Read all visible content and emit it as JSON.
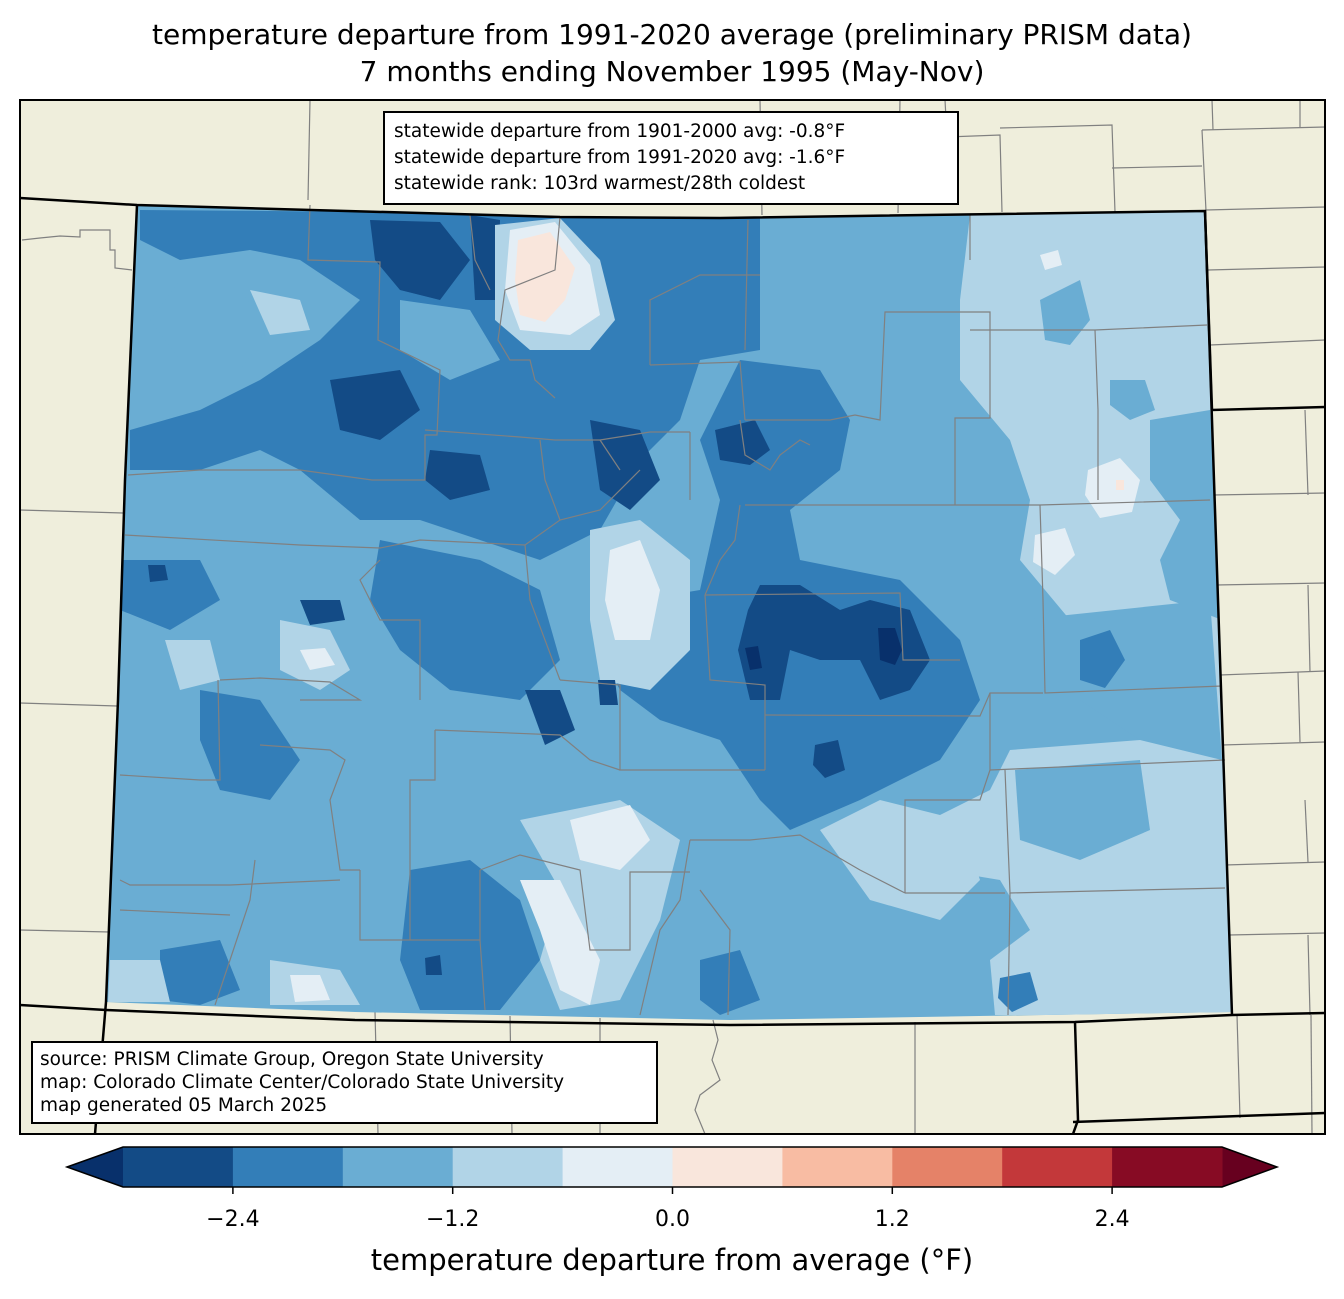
{
  "title": {
    "line1": "temperature departure from 1991-2020 average (preliminary PRISM data)",
    "line2": "7 months ending November 1995 (May-Nov)"
  },
  "stats": {
    "lines": [
      "statewide departure from 1901-2000 avg: -0.8°F",
      "statewide departure from 1991-2020 avg: -1.6°F",
      "statewide rank: 103rd warmest/28th coldest"
    ],
    "departure_1901_2000": -0.8,
    "departure_1991_2020": -1.6,
    "rank_warmest": 103,
    "rank_coldest": 28,
    "units": "°F"
  },
  "source": {
    "lines": [
      "source: PRISM Climate Group, Oregon State University",
      "map: Colorado Climate Center/Colorado State University",
      "map generated 05 March 2025"
    ]
  },
  "colorbar": {
    "label": "temperature departure from average (°F)",
    "ticks": [
      "−2.4",
      "−1.2",
      "0.0",
      "1.2",
      "2.4"
    ],
    "tick_values": [
      -2.4,
      -1.2,
      0.0,
      1.2,
      2.4
    ],
    "bounds": [
      -3.0,
      -2.4,
      -1.8,
      -1.2,
      -0.6,
      0.0,
      0.6,
      1.2,
      1.8,
      2.4,
      3.0
    ],
    "under_color": "#08306b",
    "over_color": "#67001f",
    "colors": [
      "#134b86",
      "#337eb8",
      "#6aadd3",
      "#b1d4e7",
      "#e4eef5",
      "#f9e6dc",
      "#f8bca3",
      "#e58268",
      "#c3383a",
      "#870b24"
    ],
    "extend": "both"
  },
  "map": {
    "region": "Colorado",
    "background_color": "#efeedc",
    "county_line_color": "#808080",
    "state_line_color": "#000000"
  }
}
